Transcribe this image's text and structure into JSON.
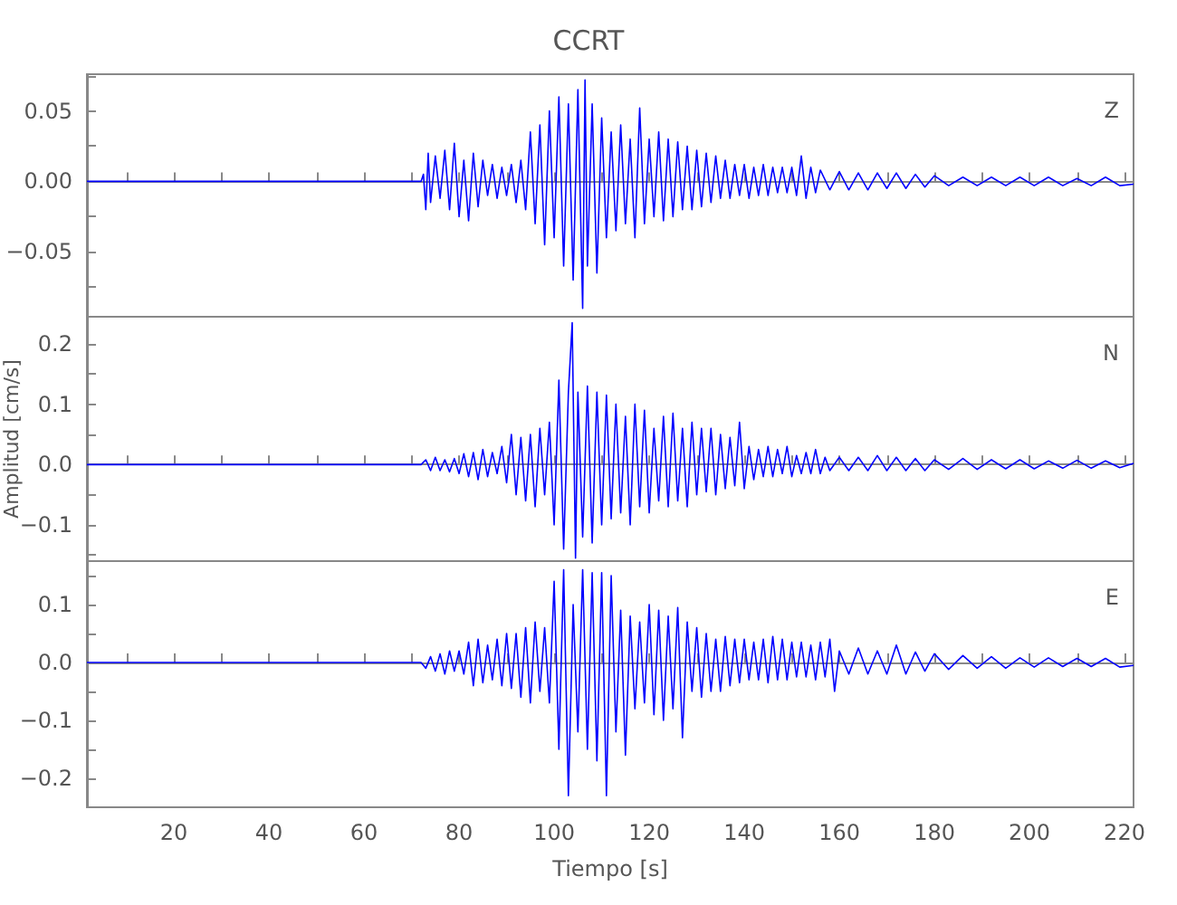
{
  "chart_data": [
    {
      "type": "line",
      "title": "CCRT",
      "annotations": [
        "Z"
      ],
      "tick_labels": "y",
      "xlim": [
        1.7,
        221.9
      ],
      "ylim": [
        -0.096,
        0.076
      ],
      "xticks": [
        {
          "value": 10,
          "label": null
        },
        20,
        {
          "value": 30,
          "label": null
        },
        40,
        {
          "value": 50,
          "label": null
        },
        60,
        {
          "value": 70,
          "label": null
        },
        80,
        {
          "value": 90,
          "label": null
        },
        100,
        {
          "value": 110,
          "label": null
        },
        120,
        {
          "value": 130,
          "label": null
        },
        140,
        {
          "value": 150,
          "label": null
        },
        160,
        {
          "value": 170,
          "label": null
        },
        180,
        {
          "value": 190,
          "label": null
        },
        200,
        {
          "value": 210,
          "label": null
        },
        220
      ],
      "yticks": [
        {
          "value": -0.075,
          "label": null
        },
        {
          "value": -0.05,
          "label": "−0.05"
        },
        {
          "value": -0.025,
          "label": null
        },
        {
          "value": 0,
          "label": "0.00"
        },
        {
          "value": 0.025,
          "label": null
        },
        0.05,
        {
          "value": 0.075,
          "label": null
        }
      ],
      "series": [
        {
          "color": "#0000ff",
          "x": [
            1.7,
            72,
            72.5,
            73,
            73.5,
            74,
            75,
            76,
            77,
            78,
            79,
            80,
            81,
            82,
            83,
            84,
            85,
            86,
            87,
            88,
            89,
            90,
            91,
            92,
            93,
            94,
            95,
            96,
            97,
            98,
            99,
            100,
            101,
            102,
            103,
            104,
            105,
            106,
            106.5,
            107,
            108,
            109,
            110,
            111,
            112,
            113,
            114,
            115,
            116,
            117,
            118,
            119,
            120,
            121,
            122,
            123,
            124,
            125,
            126,
            127,
            128,
            129,
            130,
            131,
            132,
            133,
            134,
            135,
            136,
            137,
            138,
            139,
            140,
            141,
            142,
            143,
            144,
            145,
            146,
            147,
            148,
            149,
            150,
            151,
            152,
            153,
            154,
            155,
            156,
            158,
            160,
            162,
            164,
            166,
            168,
            170,
            172,
            174,
            176,
            178,
            180,
            183,
            186,
            189,
            192,
            195,
            198,
            201,
            204,
            207,
            210,
            213,
            216,
            219,
            221.9
          ],
          "values": [
            0,
            0,
            0.005,
            -0.02,
            0.02,
            -0.015,
            0.018,
            -0.012,
            0.022,
            -0.02,
            0.027,
            -0.025,
            0.015,
            -0.028,
            0.02,
            -0.018,
            0.015,
            -0.01,
            0.012,
            -0.012,
            0.01,
            -0.01,
            0.012,
            -0.015,
            0.015,
            -0.02,
            0.035,
            -0.03,
            0.04,
            -0.045,
            0.05,
            -0.04,
            0.06,
            -0.06,
            0.055,
            -0.07,
            0.065,
            -0.09,
            0.072,
            -0.06,
            0.055,
            -0.065,
            0.045,
            -0.04,
            0.035,
            -0.035,
            0.04,
            -0.03,
            0.03,
            -0.04,
            0.052,
            -0.03,
            0.03,
            -0.025,
            0.035,
            -0.028,
            0.03,
            -0.025,
            0.028,
            -0.02,
            0.025,
            -0.02,
            0.022,
            -0.018,
            0.02,
            -0.015,
            0.018,
            -0.012,
            0.015,
            -0.012,
            0.012,
            -0.01,
            0.012,
            -0.012,
            0.01,
            -0.01,
            0.012,
            -0.01,
            0.01,
            -0.008,
            0.01,
            -0.008,
            0.01,
            -0.01,
            0.018,
            -0.012,
            0.01,
            -0.008,
            0.008,
            -0.006,
            0.007,
            -0.006,
            0.006,
            -0.006,
            0.006,
            -0.005,
            0.006,
            -0.005,
            0.005,
            -0.004,
            0.004,
            -0.003,
            0.003,
            -0.003,
            0.003,
            -0.003,
            0.003,
            -0.003,
            0.003,
            -0.003,
            0.002,
            -0.003,
            0.003,
            -0.003,
            -0.002
          ]
        }
      ]
    },
    {
      "type": "line",
      "ylabel": "Amplitud [cm/s]",
      "annotations": [
        "N"
      ],
      "tick_labels": "y",
      "xlim": [
        1.7,
        221.9
      ],
      "ylim": [
        -0.16,
        0.245
      ],
      "xticks": [
        {
          "value": 10,
          "label": null
        },
        20,
        {
          "value": 30,
          "label": null
        },
        40,
        {
          "value": 50,
          "label": null
        },
        60,
        {
          "value": 70,
          "label": null
        },
        80,
        {
          "value": 90,
          "label": null
        },
        100,
        {
          "value": 110,
          "label": null
        },
        120,
        {
          "value": 130,
          "label": null
        },
        140,
        {
          "value": 150,
          "label": null
        },
        160,
        {
          "value": 170,
          "label": null
        },
        180,
        {
          "value": 190,
          "label": null
        },
        200,
        {
          "value": 210,
          "label": null
        },
        220
      ],
      "yticks": [
        {
          "value": -0.15,
          "label": null
        },
        {
          "value": -0.1,
          "label": "−0.1"
        },
        {
          "value": -0.05,
          "label": null
        },
        {
          "value": 0,
          "label": "0.0"
        },
        {
          "value": 0.05,
          "label": null
        },
        0.1,
        {
          "value": 0.15,
          "label": null
        },
        0.2
      ],
      "series": [
        {
          "color": "#0000ff",
          "x": [
            1.7,
            72,
            73,
            74,
            75,
            76,
            77,
            78,
            79,
            80,
            81,
            82,
            83,
            84,
            85,
            86,
            87,
            88,
            89,
            90,
            91,
            92,
            93,
            94,
            95,
            96,
            97,
            98,
            99,
            100,
            101,
            102,
            103,
            103.8,
            104.5,
            105,
            106,
            107,
            108,
            109,
            110,
            111,
            112,
            113,
            114,
            115,
            116,
            117,
            118,
            119,
            120,
            121,
            122,
            123,
            124,
            125,
            126,
            127,
            128,
            129,
            130,
            131,
            132,
            133,
            134,
            135,
            136,
            137,
            138,
            139,
            140,
            141,
            142,
            143,
            144,
            145,
            146,
            147,
            148,
            149,
            150,
            151,
            152,
            153,
            154,
            155,
            156,
            157,
            158,
            160,
            162,
            164,
            166,
            168,
            170,
            172,
            174,
            176,
            178,
            180,
            183,
            186,
            189,
            192,
            195,
            198,
            201,
            204,
            207,
            210,
            213,
            216,
            219,
            221.9
          ],
          "values": [
            0,
            0,
            0.008,
            -0.01,
            0.012,
            -0.01,
            0.008,
            -0.012,
            0.01,
            -0.015,
            0.018,
            -0.02,
            0.02,
            -0.025,
            0.025,
            -0.02,
            0.02,
            -0.015,
            0.03,
            -0.03,
            0.05,
            -0.05,
            0.045,
            -0.06,
            0.05,
            -0.07,
            0.06,
            -0.05,
            0.07,
            -0.1,
            0.14,
            -0.14,
            0.12,
            0.235,
            -0.155,
            0.12,
            -0.12,
            0.13,
            -0.13,
            0.12,
            -0.1,
            0.115,
            -0.09,
            0.1,
            -0.08,
            0.08,
            -0.1,
            0.1,
            -0.07,
            0.09,
            -0.08,
            0.06,
            -0.06,
            0.08,
            -0.07,
            0.085,
            -0.06,
            0.06,
            -0.07,
            0.07,
            -0.05,
            0.06,
            -0.045,
            0.06,
            -0.05,
            0.05,
            -0.04,
            0.045,
            -0.035,
            0.07,
            -0.04,
            0.03,
            -0.025,
            0.025,
            -0.02,
            0.03,
            -0.02,
            0.025,
            -0.015,
            0.03,
            -0.02,
            0.015,
            -0.015,
            0.02,
            -0.015,
            0.025,
            -0.015,
            0.012,
            -0.01,
            0.012,
            -0.01,
            0.012,
            -0.01,
            0.015,
            -0.01,
            0.012,
            -0.01,
            0.01,
            -0.01,
            0.008,
            -0.008,
            0.01,
            -0.008,
            0.008,
            -0.007,
            0.008,
            -0.007,
            0.006,
            -0.006,
            0.007,
            -0.006,
            0.006,
            -0.005,
            0.002
          ]
        }
      ]
    },
    {
      "type": "line",
      "xlabel": "Tiempo [s]",
      "annotations": [
        "E"
      ],
      "xlim": [
        1.7,
        221.9
      ],
      "ylim": [
        -0.25,
        0.175
      ],
      "xticks": [
        {
          "value": 10,
          "label": null
        },
        20,
        {
          "value": 30,
          "label": null
        },
        40,
        {
          "value": 50,
          "label": null
        },
        60,
        {
          "value": 70,
          "label": null
        },
        80,
        {
          "value": 90,
          "label": null
        },
        100,
        {
          "value": 110,
          "label": null
        },
        120,
        {
          "value": 130,
          "label": null
        },
        140,
        {
          "value": 150,
          "label": null
        },
        160,
        {
          "value": 170,
          "label": null
        },
        180,
        {
          "value": 190,
          "label": null
        },
        200,
        {
          "value": 210,
          "label": null
        },
        220
      ],
      "yticks": [
        {
          "value": -0.2,
          "label": "−0.2"
        },
        {
          "value": -0.15,
          "label": null
        },
        {
          "value": -0.1,
          "label": "−0.1"
        },
        {
          "value": -0.05,
          "label": null
        },
        {
          "value": 0,
          "label": "0.0"
        },
        {
          "value": 0.05,
          "label": null
        },
        0.1,
        {
          "value": 0.15,
          "label": null
        }
      ],
      "series": [
        {
          "color": "#0000ff",
          "x": [
            1.7,
            72,
            73,
            74,
            75,
            76,
            77,
            78,
            79,
            80,
            81,
            82,
            83,
            84,
            85,
            86,
            87,
            88,
            89,
            90,
            91,
            92,
            93,
            94,
            95,
            96,
            97,
            98,
            99,
            100,
            101,
            102,
            103,
            104,
            105,
            106,
            107,
            108,
            109,
            110,
            111,
            112,
            113,
            114,
            115,
            116,
            117,
            118,
            119,
            120,
            121,
            122,
            123,
            124,
            125,
            126,
            127,
            128,
            129,
            130,
            131,
            132,
            133,
            134,
            135,
            136,
            137,
            138,
            139,
            140,
            141,
            142,
            143,
            144,
            145,
            146,
            147,
            148,
            149,
            150,
            151,
            152,
            153,
            154,
            155,
            156,
            157,
            158,
            159,
            160,
            162,
            164,
            166,
            168,
            170,
            172,
            174,
            176,
            178,
            180,
            183,
            186,
            189,
            192,
            195,
            198,
            201,
            204,
            207,
            210,
            213,
            216,
            219,
            221.9
          ],
          "values": [
            0,
            0,
            -0.01,
            0.01,
            -0.015,
            0.015,
            -0.02,
            0.02,
            -0.015,
            0.02,
            -0.02,
            0.035,
            -0.04,
            0.04,
            -0.035,
            0.03,
            -0.03,
            0.04,
            -0.04,
            0.05,
            -0.045,
            0.05,
            -0.06,
            0.06,
            -0.07,
            0.07,
            -0.05,
            0.06,
            -0.07,
            0.14,
            -0.15,
            0.16,
            -0.23,
            0.1,
            -0.12,
            0.16,
            -0.15,
            0.155,
            -0.17,
            0.155,
            -0.23,
            0.15,
            -0.12,
            0.09,
            -0.16,
            0.08,
            -0.08,
            0.07,
            -0.07,
            0.1,
            -0.09,
            0.09,
            -0.1,
            0.08,
            -0.08,
            0.095,
            -0.13,
            0.07,
            -0.05,
            0.06,
            -0.06,
            0.05,
            -0.05,
            0.04,
            -0.05,
            0.045,
            -0.04,
            0.04,
            -0.035,
            0.04,
            -0.03,
            0.035,
            -0.03,
            0.04,
            -0.035,
            0.045,
            -0.03,
            0.04,
            -0.03,
            0.035,
            -0.025,
            0.035,
            -0.025,
            0.03,
            -0.03,
            0.035,
            -0.025,
            0.04,
            -0.05,
            0.02,
            -0.02,
            0.025,
            -0.02,
            0.02,
            -0.02,
            0.03,
            -0.02,
            0.018,
            -0.015,
            0.015,
            -0.012,
            0.012,
            -0.01,
            0.01,
            -0.01,
            0.008,
            -0.008,
            0.008,
            -0.007,
            0.007,
            -0.007,
            0.007,
            -0.008,
            -0.005
          ]
        }
      ]
    }
  ]
}
